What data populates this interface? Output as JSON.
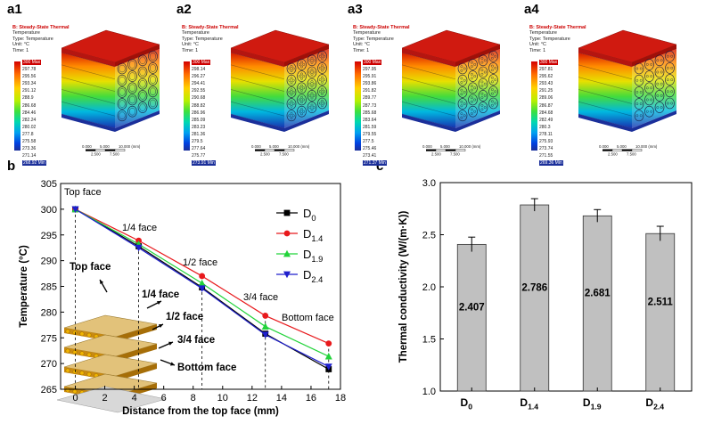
{
  "panels": {
    "a1": "a1",
    "a2": "a2",
    "a3": "a3",
    "a4": "a4",
    "b": "b",
    "c": "c"
  },
  "sims": [
    {
      "id": "a1",
      "title": "B: Steady-State Thermal",
      "lines": [
        "Temperature",
        "Type: Temperature",
        "Unit: °C",
        "Time: 1"
      ],
      "legend": [
        "300 Max",
        "297.78",
        "295.56",
        "293.34",
        "291.12",
        "288.9",
        "286.68",
        "284.46",
        "282.24",
        "280.02",
        "277.8",
        "275.58",
        "273.36",
        "271.14",
        "268.92 Min"
      ],
      "pores": 1
    },
    {
      "id": "a2",
      "title": "B: Steady-State Thermal",
      "lines": [
        "Temperature",
        "Type: Temperature",
        "Unit: °C",
        "Time: 1"
      ],
      "legend": [
        "300 Max",
        "298.14",
        "296.27",
        "294.41",
        "292.55",
        "290.68",
        "288.82",
        "286.96",
        "285.09",
        "283.23",
        "281.36",
        "279.5",
        "277.64",
        "275.77",
        "273.91 Min"
      ],
      "pores": 4
    },
    {
      "id": "a3",
      "title": "B: Steady-State Thermal",
      "lines": [
        "Temperature",
        "Type: Temperature",
        "Unit: °C",
        "Time: 1"
      ],
      "legend": [
        "300 Max",
        "297.95",
        "295.91",
        "293.86",
        "291.82",
        "289.77",
        "287.73",
        "285.68",
        "283.64",
        "281.59",
        "279.55",
        "277.5",
        "275.46",
        "273.41",
        "271.37 Min"
      ],
      "pores": 3
    },
    {
      "id": "a4",
      "title": "B: Steady-State Thermal",
      "lines": [
        "Temperature",
        "Type: Temperature",
        "Unit: °C",
        "Time: 1"
      ],
      "legend": [
        "300 Max",
        "297.81",
        "295.62",
        "293.43",
        "291.25",
        "289.06",
        "286.87",
        "284.68",
        "282.49",
        "280.3",
        "278.11",
        "275.93",
        "273.74",
        "271.55",
        "269.36 Min"
      ],
      "pores": 2
    }
  ],
  "scalebar": {
    "top": [
      "0.000",
      "5.000",
      "10.000 (mm)"
    ],
    "bottom": [
      "2.500",
      "7.500"
    ]
  },
  "colors": {
    "d0": "#000000",
    "d14": "#e8191c",
    "d19": "#22d33a",
    "d24": "#1f1fcc",
    "bar": "#c0c0c0"
  },
  "chart_data": [
    {
      "type": "line",
      "title": "",
      "xlabel": "Distance from the top face (mm)",
      "ylabel": "Temperature (°C)",
      "xlim": [
        -1,
        18
      ],
      "ylim": [
        265,
        305
      ],
      "xticks": [
        0,
        2,
        4,
        6,
        8,
        10,
        12,
        14,
        16,
        18
      ],
      "yticks": [
        265,
        270,
        275,
        280,
        285,
        290,
        295,
        300,
        305
      ],
      "x": [
        0,
        4.3,
        8.6,
        12.9,
        17.2
      ],
      "series": [
        {
          "name": "D",
          "sub": "0",
          "values": [
            300,
            292.8,
            284.8,
            275.8,
            268.9
          ]
        },
        {
          "name": "D",
          "sub": "1.4",
          "values": [
            300,
            293.9,
            287.0,
            279.3,
            273.9
          ]
        },
        {
          "name": "D",
          "sub": "1.9",
          "values": [
            300,
            293.2,
            285.6,
            277.2,
            271.4
          ]
        },
        {
          "name": "D",
          "sub": "2.4",
          "values": [
            300,
            292.5,
            284.6,
            275.6,
            269.4
          ]
        }
      ],
      "annotations": [
        "Top face",
        "1/4 face",
        "1/2 face",
        "3/4 face",
        "Bottom face"
      ],
      "inset_labels": [
        "Top face",
        "1/4 face",
        "1/2 face",
        "3/4 face",
        "Bottom face"
      ]
    },
    {
      "type": "bar",
      "title": "",
      "xlabel": "",
      "ylabel": "Thermal conductivity (W/(m·K))",
      "ylim": [
        1.0,
        3.0
      ],
      "yticks": [
        "1.0",
        "1.5",
        "2.0",
        "2.5",
        "3.0"
      ],
      "categories": [
        {
          "name": "D",
          "sub": "0"
        },
        {
          "name": "D",
          "sub": "1.4"
        },
        {
          "name": "D",
          "sub": "1.9"
        },
        {
          "name": "D",
          "sub": "2.4"
        }
      ],
      "values": [
        2.407,
        2.786,
        2.681,
        2.511
      ],
      "value_labels": [
        "2.407",
        "2.786",
        "2.681",
        "2.511"
      ],
      "errors": [
        0.07,
        0.06,
        0.06,
        0.07
      ]
    }
  ]
}
